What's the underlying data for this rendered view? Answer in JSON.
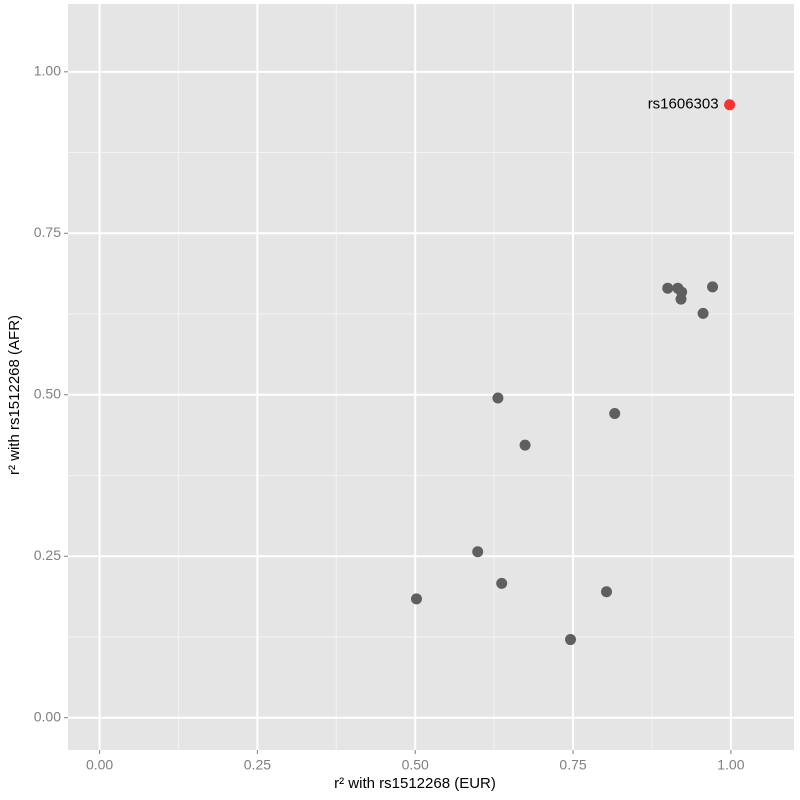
{
  "chart_data": {
    "type": "scatter",
    "xlabel": "r² with rs1512268 (EUR)",
    "ylabel": "r² with rs1512268 (AFR)",
    "x": [
      0.998,
      0.9,
      0.916,
      0.922,
      0.921,
      0.971,
      0.956,
      0.631,
      0.816,
      0.674,
      0.599,
      0.637,
      0.803,
      0.502,
      0.746
    ],
    "values": [
      0.949,
      0.665,
      0.665,
      0.659,
      0.648,
      0.667,
      0.626,
      0.495,
      0.471,
      0.422,
      0.257,
      0.208,
      0.195,
      0.184,
      0.121
    ],
    "colors": [
      "#f8322f",
      "#5f5f5f",
      "#5f5f5f",
      "#5f5f5f",
      "#5f5f5f",
      "#5f5f5f",
      "#5f5f5f",
      "#5f5f5f",
      "#5f5f5f",
      "#5f5f5f",
      "#5f5f5f",
      "#5f5f5f",
      "#5f5f5f",
      "#5f5f5f",
      "#5f5f5f"
    ],
    "point_labels": [
      "rs1606303",
      null,
      null,
      null,
      null,
      null,
      null,
      null,
      null,
      null,
      null,
      null,
      null,
      null,
      null
    ],
    "xlim": [
      -0.05,
      1.1
    ],
    "ylim": [
      -0.05,
      1.105
    ],
    "xticks": [
      {
        "value": 0,
        "label": "0.00"
      },
      {
        "value": 0.25,
        "label": "0.25"
      },
      {
        "value": 0.5,
        "label": "0.50"
      },
      {
        "value": 0.75,
        "label": "0.75"
      },
      {
        "value": 1,
        "label": "1.00"
      }
    ],
    "yticks": [
      {
        "value": 0,
        "label": "0.00"
      },
      {
        "value": 0.25,
        "label": "0.25"
      },
      {
        "value": 0.5,
        "label": "0.50"
      },
      {
        "value": 0.75,
        "label": "0.75"
      },
      {
        "value": 1,
        "label": "1.00"
      }
    ],
    "x_minor_ticks": [
      0.125,
      0.375,
      0.625,
      0.875
    ],
    "y_minor_ticks": [
      0.125,
      0.375,
      0.625,
      0.875
    ],
    "grid": true
  }
}
